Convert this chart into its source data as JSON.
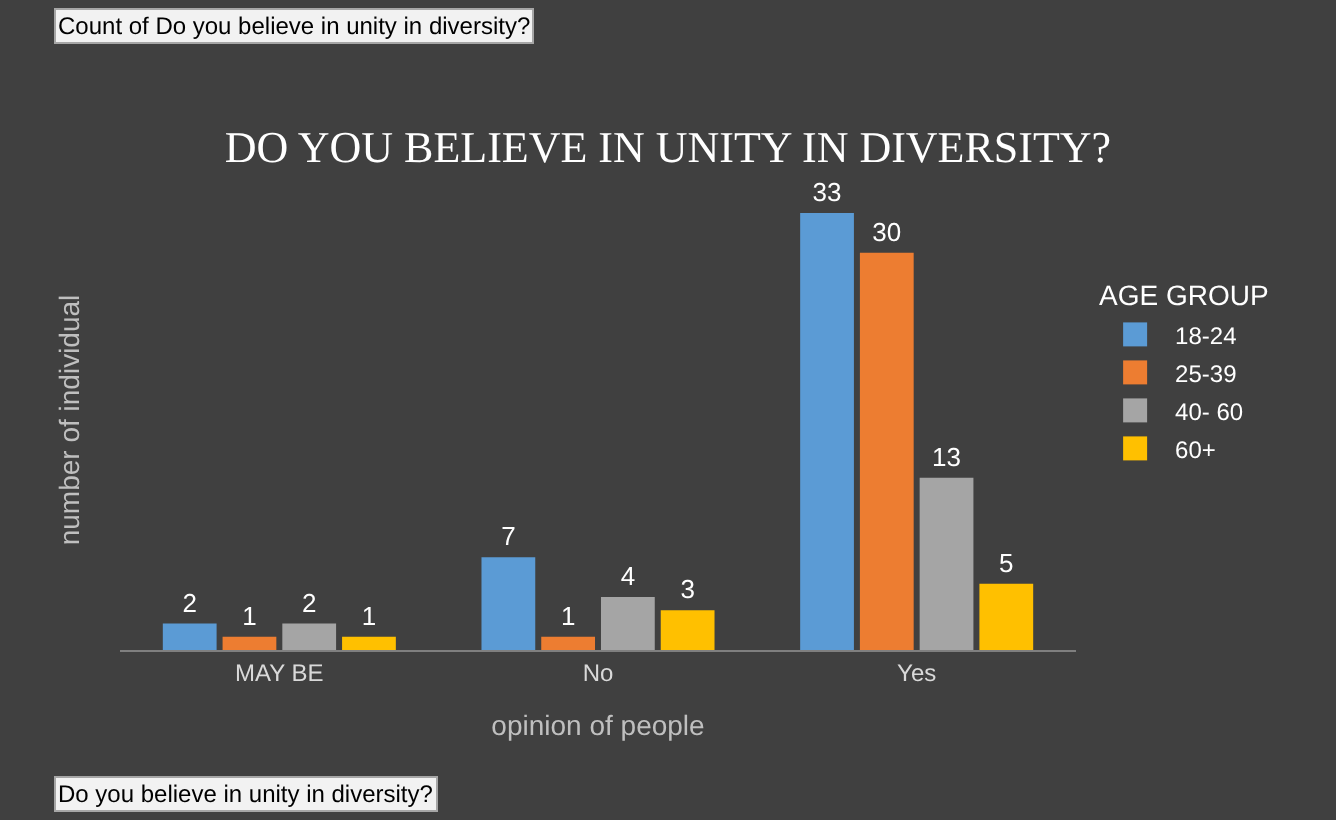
{
  "chart_data": {
    "type": "bar",
    "title": "DO YOU BELIEVE IN UNITY IN DIVERSITY?",
    "xlabel": "opinion of people",
    "ylabel": "number of individual",
    "legend_title": "AGE GROUP",
    "categories": [
      "MAY BE",
      "No",
      "Yes"
    ],
    "series": [
      {
        "name": "18-24",
        "color": "#5b9bd5",
        "values": [
          2,
          7,
          33
        ]
      },
      {
        "name": "25-39",
        "color": "#ed7d31",
        "values": [
          1,
          1,
          30
        ]
      },
      {
        "name": "40- 60",
        "color": "#a5a5a5",
        "values": [
          2,
          4,
          13
        ]
      },
      {
        "name": "60+",
        "color": "#ffc000",
        "values": [
          1,
          3,
          5
        ]
      }
    ],
    "data_labels": true,
    "grid": false,
    "legend": "right",
    "annotations": [
      "Count of Do you believe in unity in diversity?",
      "Do you believe in unity in diversity?"
    ]
  }
}
